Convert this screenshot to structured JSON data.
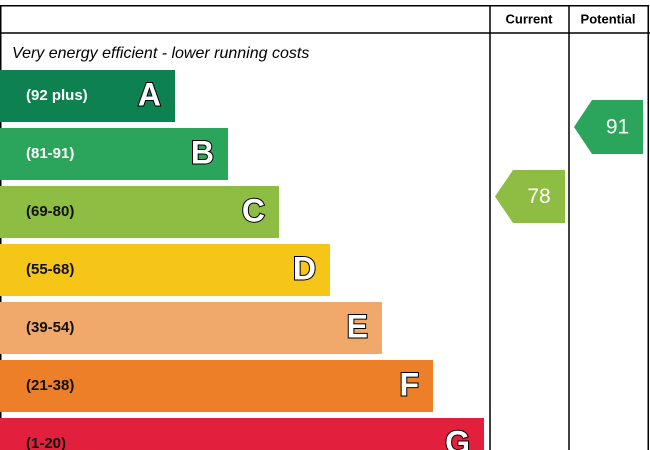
{
  "header": {
    "current": "Current",
    "potential": "Potential"
  },
  "caption": "Very energy efficient - lower running costs",
  "bands": [
    {
      "range": "(92 plus)",
      "letter": "A",
      "color": "#0e8150",
      "text_color": "#ffffff"
    },
    {
      "range": "(81-91)",
      "letter": "B",
      "color": "#2ba55b",
      "text_color": "#ffffff"
    },
    {
      "range": "(69-80)",
      "letter": "C",
      "color": "#8dbe43",
      "text_color": "#111111"
    },
    {
      "range": "(55-68)",
      "letter": "D",
      "color": "#f5c518",
      "text_color": "#111111"
    },
    {
      "range": "(39-54)",
      "letter": "E",
      "color": "#f0a96b",
      "text_color": "#111111"
    },
    {
      "range": "(21-38)",
      "letter": "F",
      "color": "#ec7f27",
      "text_color": "#111111"
    },
    {
      "range": "(1-20)",
      "letter": "G",
      "color": "#e2203d",
      "text_color": "#111111"
    }
  ],
  "current": {
    "value": "78",
    "color": "#8dbe43"
  },
  "potential": {
    "value": "91",
    "color": "#2ba55b"
  }
}
